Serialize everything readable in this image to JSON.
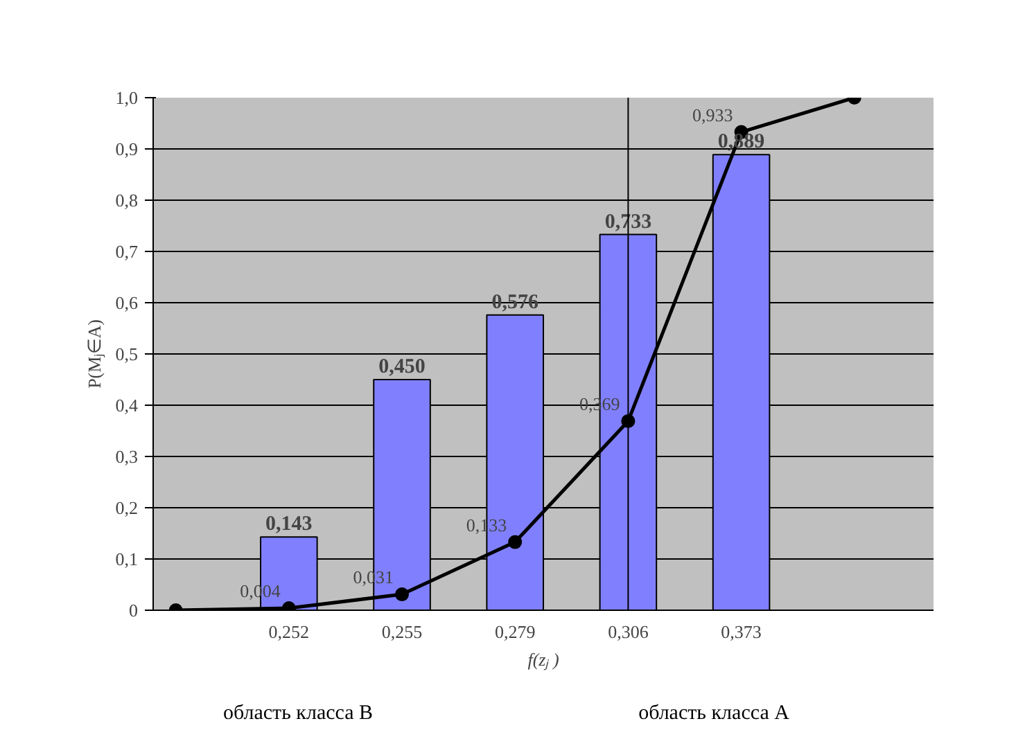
{
  "chart_data": {
    "type": "bar",
    "ylabel": "P(Mⱼ∈A)",
    "xlabel": "f(zⱼ )",
    "categories": [
      null,
      "0,252",
      "0,255",
      "0,279",
      "0,306",
      "0,373",
      null
    ],
    "series": [
      {
        "color": "#8080ff",
        "values": [
          null,
          0.143,
          0.45,
          0.576,
          0.733,
          0.889,
          null
        ],
        "value_labels": [
          null,
          "0,143",
          "0,450",
          "0,576",
          "0,733",
          "0,889",
          null
        ]
      },
      {
        "type": "line",
        "color": "#000000",
        "marker": "circle",
        "values": [
          0.0,
          0.004,
          0.031,
          0.133,
          0.369,
          0.933,
          1.0
        ],
        "value_labels": [
          null,
          "0,004",
          "0,031",
          "0,133",
          "0,369",
          "0,933",
          null
        ]
      }
    ],
    "ylim": [
      0,
      1.0
    ],
    "yticks": [
      {
        "value": 0,
        "label": "0"
      },
      {
        "value": 0.1,
        "label": "0,1"
      },
      {
        "value": 0.2,
        "label": "0,2"
      },
      {
        "value": 0.3,
        "label": "0,3"
      },
      {
        "value": 0.4,
        "label": "0,4"
      },
      {
        "value": 0.5,
        "label": "0,5"
      },
      {
        "value": 0.6,
        "label": "0,6"
      },
      {
        "value": 0.7,
        "label": "0,7"
      },
      {
        "value": 0.8,
        "label": "0,8"
      },
      {
        "value": 0.9,
        "label": "0,9"
      },
      {
        "value": 1.0,
        "label": "1,0"
      }
    ],
    "grid": "y",
    "ref_lines": [
      {
        "axis": "x",
        "value": "0,306",
        "color": "#000000"
      }
    ],
    "annotations": [
      "область класса В",
      "область класса А"
    ]
  }
}
